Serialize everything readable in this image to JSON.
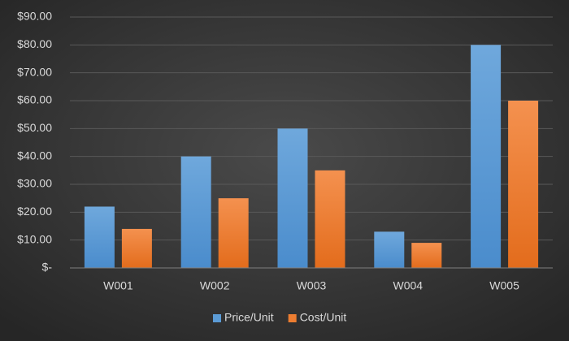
{
  "chart_data": {
    "type": "bar",
    "categories": [
      "W001",
      "W002",
      "W003",
      "W004",
      "W005"
    ],
    "series": [
      {
        "name": "Price/Unit",
        "color": "#5b9bd5",
        "values": [
          22,
          40,
          50,
          13,
          80
        ]
      },
      {
        "name": "Cost/Unit",
        "color": "#ed7d31",
        "values": [
          14,
          25,
          35,
          9,
          60
        ]
      }
    ],
    "ylim": [
      0,
      90
    ],
    "yticks": [
      {
        "value": 0,
        "label": "$-"
      },
      {
        "value": 10,
        "label": "$10.00"
      },
      {
        "value": 20,
        "label": "$20.00"
      },
      {
        "value": 30,
        "label": "$30.00"
      },
      {
        "value": 40,
        "label": "$40.00"
      },
      {
        "value": 50,
        "label": "$50.00"
      },
      {
        "value": 60,
        "label": "$60.00"
      },
      {
        "value": 70,
        "label": "$70.00"
      },
      {
        "value": 80,
        "label": "$80.00"
      },
      {
        "value": 90,
        "label": "$90.00"
      }
    ],
    "grid": true,
    "legend": "bottom"
  }
}
